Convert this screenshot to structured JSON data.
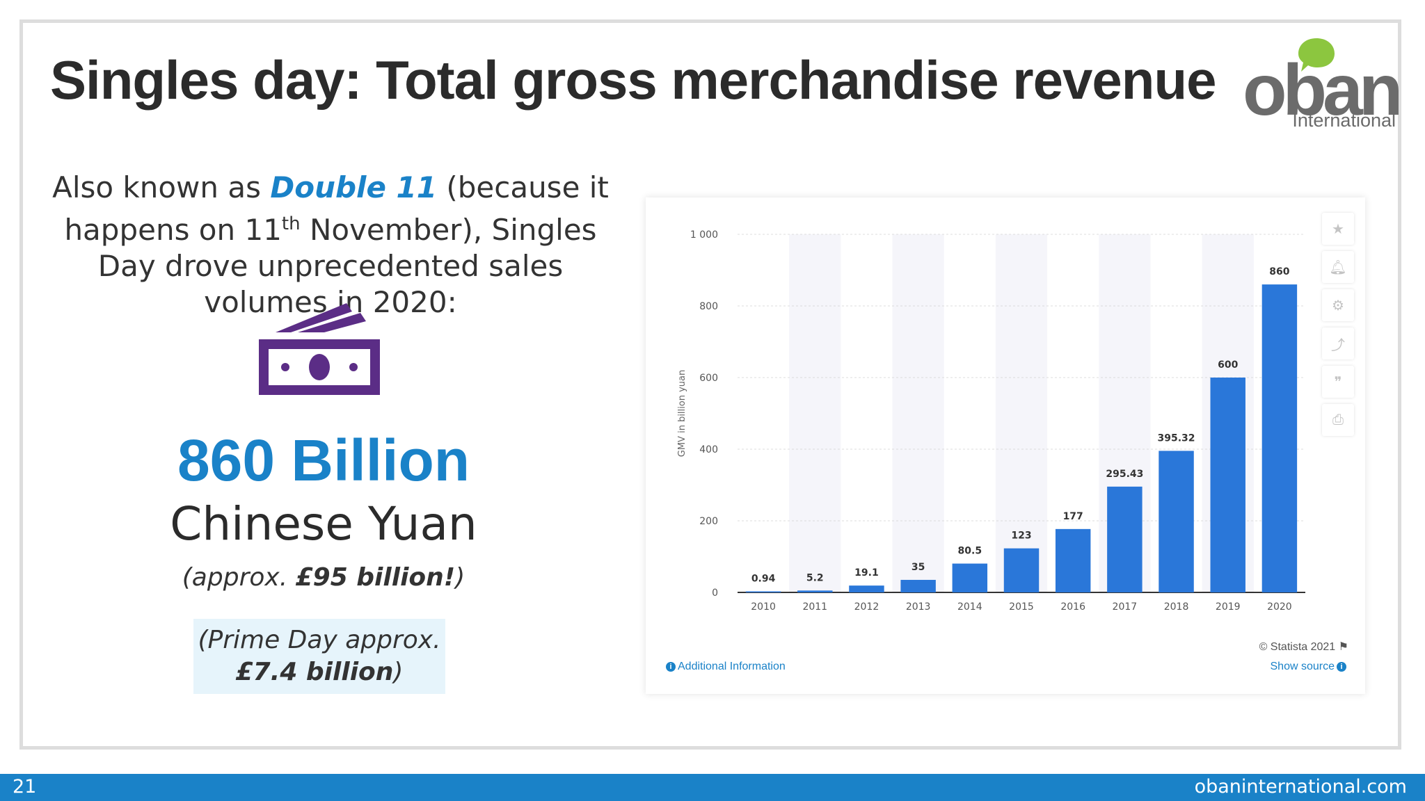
{
  "slide": {
    "title": "Singles day: Total gross merchandise revenue",
    "page_number": "21",
    "website": "obaninternational.com"
  },
  "logo": {
    "word": "oban",
    "sub": "International"
  },
  "intro": {
    "part1": "Also known as ",
    "highlight": "Double 11",
    "part2": " (because it happens on 11",
    "superscript": "th",
    "part3": " November), Singles Day drove unprecedented sales volumes in 2020:"
  },
  "stat": {
    "value": "860 Billion",
    "unit": "Chinese Yuan",
    "approx_prefix": "(approx. ",
    "approx_value": "£95 billion!",
    "approx_suffix": ")"
  },
  "prime_day": {
    "line1": "(Prime Day approx.",
    "value": "£7.4 billion",
    "suffix": ")"
  },
  "chart_footer": {
    "additional_info": "Additional Information",
    "copyright": "© Statista 2021",
    "show_source": "Show source"
  },
  "toolbar": {
    "icons": [
      "star-icon",
      "bell-icon",
      "gear-icon",
      "share-icon",
      "quote-icon",
      "print-icon"
    ]
  },
  "colors": {
    "accent": "#1a82c8",
    "bar": "#2a77d9",
    "purple": "#5b2d86",
    "logo_green": "#8cc63f",
    "logo_gray": "#6b6b6b"
  },
  "chart_data": {
    "type": "bar",
    "categories": [
      "2010",
      "2011",
      "2012",
      "2013",
      "2014",
      "2015",
      "2016",
      "2017",
      "2018",
      "2019",
      "2020"
    ],
    "values": [
      0.94,
      5.2,
      19.1,
      35,
      80.5,
      123,
      177,
      295.43,
      395.32,
      600,
      860
    ],
    "value_labels": [
      "0.94",
      "5.2",
      "19.1",
      "35",
      "80.5",
      "123",
      "177",
      "295.43",
      "395.32",
      "600",
      "860"
    ],
    "ylabel": "GMV in billion yuan",
    "ylim": [
      0,
      1000
    ],
    "yticks": [
      0,
      200,
      400,
      600,
      800,
      1000
    ],
    "ytick_labels": [
      "0",
      "200",
      "400",
      "600",
      "800",
      "1 000"
    ],
    "grid": true
  }
}
